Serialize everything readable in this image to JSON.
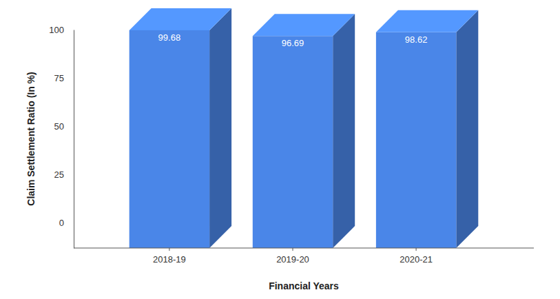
{
  "chart_data": {
    "type": "bar",
    "categories": [
      "2018-19",
      "2019-20",
      "2020-21"
    ],
    "values": [
      99.68,
      96.69,
      98.62
    ],
    "color": "#4a86e8",
    "xlabel": "Financial Years",
    "ylabel": "Claim Settlement Ratio (In %)",
    "ylim": [
      -13,
      100
    ],
    "yticks": [
      0,
      25,
      50,
      75,
      100
    ],
    "grid": false,
    "data_labels": true
  }
}
